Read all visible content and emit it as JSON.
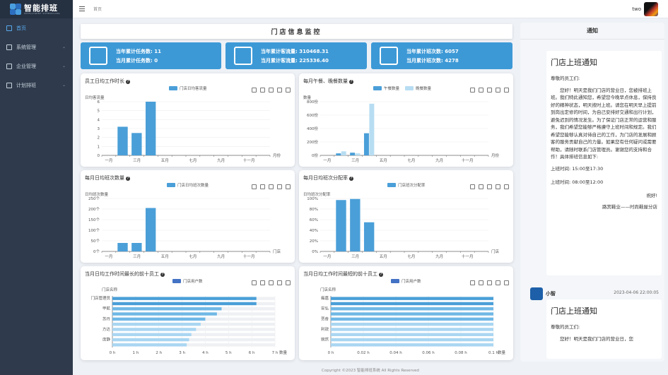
{
  "app": {
    "title": "智能排班",
    "subtitle": "INTELLIGENT SCHEDULING"
  },
  "sidebar": {
    "items": [
      {
        "label": "首页",
        "icon": "home-icon",
        "active": true
      },
      {
        "label": "系统管理",
        "icon": "monitor-icon"
      },
      {
        "label": "企业管理",
        "icon": "building-icon"
      },
      {
        "label": "计划排班",
        "icon": "calendar-icon"
      }
    ]
  },
  "header": {
    "breadcrumb": "首页",
    "username": "two"
  },
  "page": {
    "title": "门店信息监控"
  },
  "stats": [
    {
      "line1": "当年累计任务数: 11",
      "line2": "当月累计任务数: 0",
      "icon": "task-clock-icon"
    },
    {
      "line1": "当年累计客流量: 310468.31",
      "line2": "当月累计客流量: 225336.40",
      "icon": "bar-chart-icon"
    },
    {
      "line1": "当年累计班次数: 6057",
      "line2": "当月累计班次数: 4278",
      "icon": "calendar-clock-icon"
    }
  ],
  "colors": {
    "primary": "#3d99d6",
    "bar_dark": "#4a9fd8",
    "bar_light": "#b7ddf2",
    "hbar": "#4472c4"
  },
  "charts": {
    "c1": {
      "title": "员工日均工作时长",
      "legend": [
        "门店日均客流量"
      ],
      "ylabel": "日均客流量",
      "xunit": "月份",
      "yticks": [
        "0",
        "1",
        "2",
        "3",
        "4",
        "5",
        "6"
      ],
      "xticks": [
        "一月",
        "三月",
        "五月",
        "七月",
        "九月",
        "十一月"
      ]
    },
    "c2": {
      "title": "每月午餐、晚餐数量",
      "legend": [
        "午餐数量",
        "晚餐数量"
      ],
      "ylabel": "数量",
      "xunit": "月份",
      "yticks": [
        "0份",
        "200份",
        "400份",
        "600份",
        "800份"
      ],
      "xticks": [
        "一月",
        "三月",
        "五月",
        "七月",
        "九月",
        "十一月"
      ]
    },
    "c3": {
      "title": "每月日均班次数量",
      "legend": [
        "门店日均班次数量"
      ],
      "ylabel": "日均班次数量",
      "xunit": "门店",
      "yticks": [
        "0个",
        "50个",
        "100个",
        "150个",
        "200个",
        "250个"
      ],
      "xticks": [
        "一月",
        "三月",
        "五月",
        "七月",
        "九月",
        "十一月"
      ]
    },
    "c4": {
      "title": "每月日均班次分配率",
      "legend": [
        "门店班次分配率"
      ],
      "ylabel": "日均班次分配率",
      "xunit": "门店",
      "yticks": [
        "0%",
        "20%",
        "40%",
        "60%",
        "80%",
        "100%"
      ],
      "xticks": [
        "一月",
        "三月",
        "五月",
        "七月",
        "九月",
        "十一月"
      ]
    },
    "c5": {
      "title": "当月日均工作时间最长的前十员工",
      "legend": [
        "门店用户数"
      ],
      "ylabel": "门店名称",
      "xunit": "数量",
      "xticks": [
        "0 h",
        "1 h",
        "2 h",
        "3 h",
        "4 h",
        "5 h",
        "6 h",
        "7 h"
      ],
      "yticks": [
        "门店管理员",
        "甲航",
        "苏丹",
        "方达",
        "庞静"
      ]
    },
    "c6": {
      "title": "当月日均工作时间最短的前十员工",
      "legend": [
        "门店用户数"
      ],
      "ylabel": "门店名称",
      "xunit": "数量",
      "xticks": [
        "0 h",
        "0.02 h",
        "0.04 h",
        "0.06 h",
        "0.08 h",
        "0.1 h"
      ],
      "yticks": [
        "雍嘉",
        "安弘",
        "贾奇",
        "利锐",
        "婉然"
      ]
    }
  },
  "chart_data": [
    {
      "type": "bar",
      "categories": [
        "一月",
        "二月",
        "三月",
        "四月",
        "五月",
        "六月",
        "七月",
        "八月",
        "九月",
        "十月",
        "十一月",
        "十二月"
      ],
      "series": [
        {
          "name": "门店日均客流量",
          "values": [
            0,
            3.2,
            2.5,
            6,
            0,
            0,
            0,
            0,
            0,
            0,
            0,
            0
          ]
        }
      ],
      "ylim": [
        0,
        6
      ]
    },
    {
      "type": "bar",
      "categories": [
        "一月",
        "二月",
        "三月",
        "四月",
        "五月",
        "六月",
        "七月",
        "八月",
        "九月",
        "十月",
        "十一月",
        "十二月"
      ],
      "series": [
        {
          "name": "午餐数量",
          "values": [
            0,
            30,
            40,
            330,
            0,
            0,
            0,
            0,
            0,
            0,
            0,
            0
          ]
        },
        {
          "name": "晚餐数量",
          "values": [
            0,
            60,
            30,
            770,
            0,
            0,
            0,
            0,
            0,
            0,
            0,
            0
          ]
        }
      ],
      "ylim": [
        0,
        800
      ]
    },
    {
      "type": "bar",
      "categories": [
        "一月",
        "二月",
        "三月",
        "四月",
        "五月",
        "六月",
        "七月",
        "八月",
        "九月",
        "十月",
        "十一月",
        "十二月"
      ],
      "series": [
        {
          "name": "门店日均班次数量",
          "values": [
            0,
            40,
            40,
            205,
            0,
            0,
            0,
            0,
            0,
            0,
            0,
            0
          ]
        }
      ],
      "ylim": [
        0,
        250
      ]
    },
    {
      "type": "bar",
      "categories": [
        "一月",
        "二月",
        "三月",
        "四月",
        "五月",
        "六月",
        "七月",
        "八月",
        "九月",
        "十月",
        "十一月",
        "十二月"
      ],
      "series": [
        {
          "name": "门店班次分配率",
          "values": [
            0,
            97,
            99,
            55,
            0,
            0,
            0,
            0,
            0,
            0,
            0,
            0
          ]
        }
      ],
      "ylim": [
        0,
        100
      ]
    },
    {
      "type": "bar",
      "categories": [
        "门店管理员",
        "",
        "甲航",
        "",
        "苏丹",
        "",
        "方达",
        "",
        "庞静",
        ""
      ],
      "series": [
        {
          "name": "门店用户数",
          "values": [
            6.2,
            6.2,
            4.7,
            4.5,
            4.0,
            3.8,
            3.6,
            3.4,
            3.3,
            3.2
          ]
        }
      ],
      "xlim": [
        0,
        7
      ]
    },
    {
      "type": "bar",
      "categories": [
        "雍嘉",
        "",
        "安弘",
        "",
        "贾奇",
        "",
        "利锐",
        "",
        "婉然",
        ""
      ],
      "series": [
        {
          "name": "门店用户数",
          "values": [
            0.1,
            0.1,
            0.1,
            0.1,
            0.1,
            0.1,
            0.1,
            0.1,
            0.1,
            0.1
          ]
        }
      ],
      "xlim": [
        0,
        0.1
      ]
    }
  ],
  "notice": {
    "title": "通知",
    "msg1": {
      "heading": "门店上班通知",
      "greeting": "尊敬的员工们:",
      "body": "您好！明天是我们门店的营业日，您被排班上班。我们特此通知您，希望您今晚早点休息，保持良好的精神状态，明天按时上班。请您在明天早上提前到岗出定修的时间，为自己安排好交通和出行计划，避免迟到的情况发生。为了保证门店正常的运营和服务，我们希望您能够严格遵守上班时间和规定。我们希望您能够认真对待自己的工作，为门店的发展和顾客的服务贡献自己的力量。如果您有任何疑问或需要帮助，请随时联系门店管理员。谢谢您的支持和合作！具体排班信息如下:",
      "time1": "上班时间: 15:00至17:30",
      "time2": "上班时间: 08:00至12:00",
      "closing": "祝好!",
      "sign": "路宾鞋业——时尚鞋屋分店"
    },
    "sender": "小智",
    "time": "2023-04-06 22:00:05",
    "msg2": {
      "heading": "门店上班通知",
      "greeting": "尊敬的员工们:",
      "body": "您好！明天是我们门店的营业日，您"
    }
  },
  "footer": "Copyright ©2023 智能排班系统 All Rights Reserved"
}
